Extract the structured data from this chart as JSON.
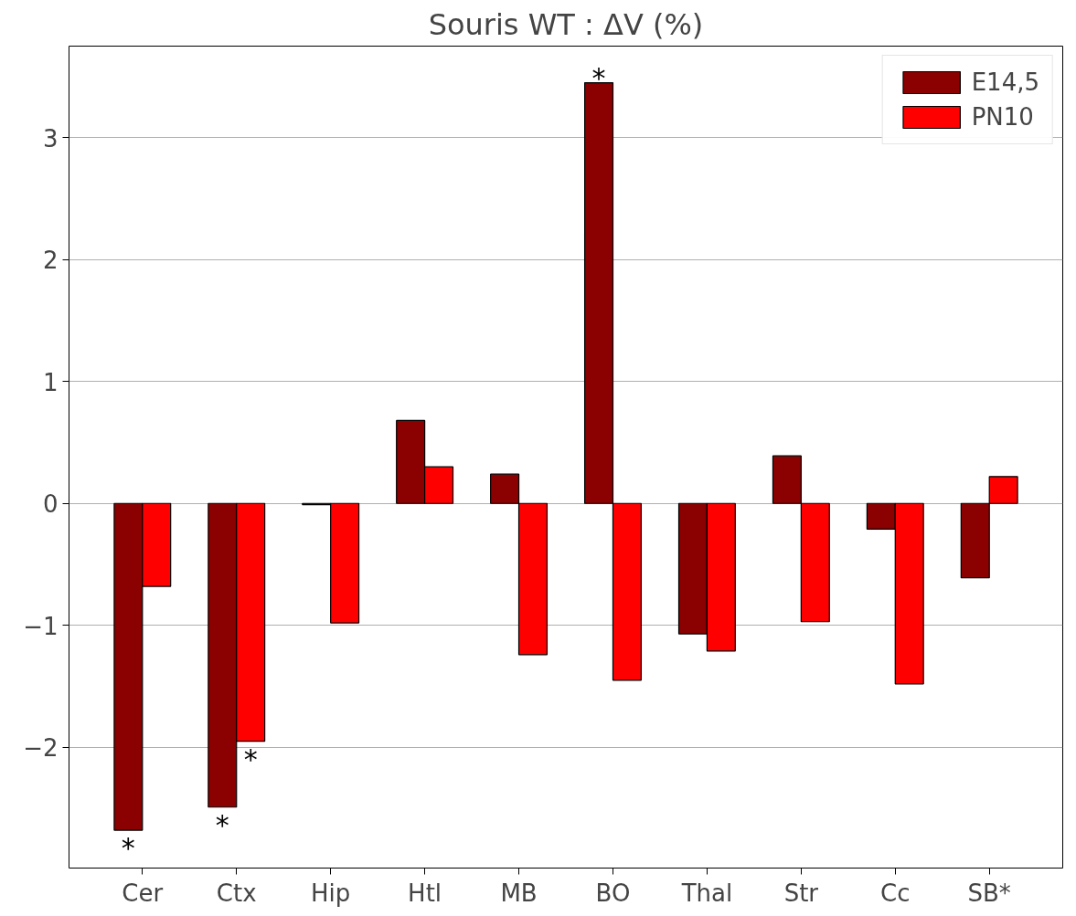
{
  "chart_data": {
    "type": "bar",
    "title": "Souris WT : ΔV (%)",
    "categories": [
      "Cer",
      "Ctx",
      "Hip",
      "Htl",
      "MB",
      "BO",
      "Thal",
      "Str",
      "Cc",
      "SB*"
    ],
    "series": [
      {
        "name": "E14,5",
        "color": "#8b0000",
        "values": [
          -2.68,
          -2.49,
          -0.01,
          0.68,
          0.24,
          3.45,
          -1.07,
          0.39,
          -0.21,
          -0.61
        ]
      },
      {
        "name": "PN10",
        "color": "#ff0000",
        "values": [
          -0.68,
          -1.95,
          -0.98,
          0.3,
          -1.24,
          -1.45,
          -1.21,
          -0.97,
          -1.48,
          0.22
        ]
      }
    ],
    "ylim": [
      -2.99,
      3.75
    ],
    "yticks": [
      {
        "value": -2,
        "label": "−2"
      },
      {
        "value": -1,
        "label": "−1"
      },
      0,
      1,
      2,
      3
    ],
    "grid": "y",
    "legend": "top right",
    "annotations": [
      {
        "text": "*",
        "x": "Cer",
        "y": -2.68
      },
      {
        "text": "*",
        "x": "Ctx",
        "y": -2.49
      },
      {
        "text": "*",
        "x": "Ctx",
        "y": -1.95
      },
      {
        "text": "*",
        "x": "BO",
        "y": 3.45
      }
    ]
  }
}
